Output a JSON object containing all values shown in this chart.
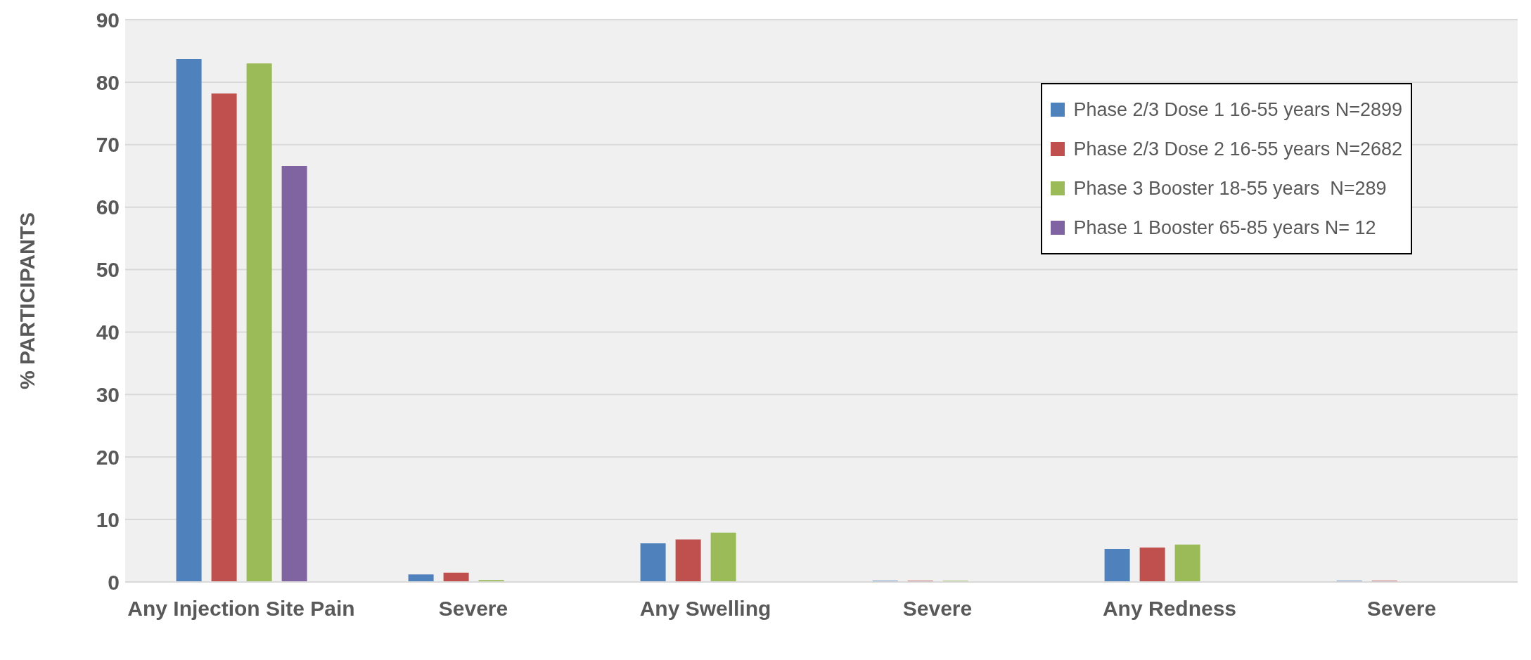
{
  "chart_data": {
    "type": "bar",
    "ylabel": "% PARTICIPANTS",
    "categories": [
      "Any Injection Site Pain",
      "Severe",
      "Any Swelling",
      "Severe",
      "Any Redness",
      "Severe"
    ],
    "series": [
      {
        "name": "Phase 2/3 Dose 1 16-55 years N=2899",
        "color": "#4f81bd",
        "values": [
          83.7,
          1.2,
          6.2,
          0.2,
          5.3,
          0.2
        ]
      },
      {
        "name": "Phase 2/3 Dose 2 16-55 years N=2682",
        "color": "#c0504d",
        "values": [
          78.2,
          1.5,
          6.8,
          0.2,
          5.5,
          0.2
        ]
      },
      {
        "name": "Phase 3 Booster 18-55 years  N=289",
        "color": "#9bbb59",
        "values": [
          83.0,
          0.3,
          7.9,
          0.2,
          6.0,
          null
        ]
      },
      {
        "name": "Phase 1 Booster 65-85 years N= 12",
        "color": "#8064a2",
        "values": [
          66.6,
          null,
          null,
          null,
          null,
          null
        ]
      }
    ],
    "ylim": [
      0,
      90
    ],
    "yticks": [
      0,
      10,
      20,
      30,
      40,
      50,
      60,
      70,
      80,
      90
    ],
    "grid": "y",
    "legend": "top right"
  }
}
